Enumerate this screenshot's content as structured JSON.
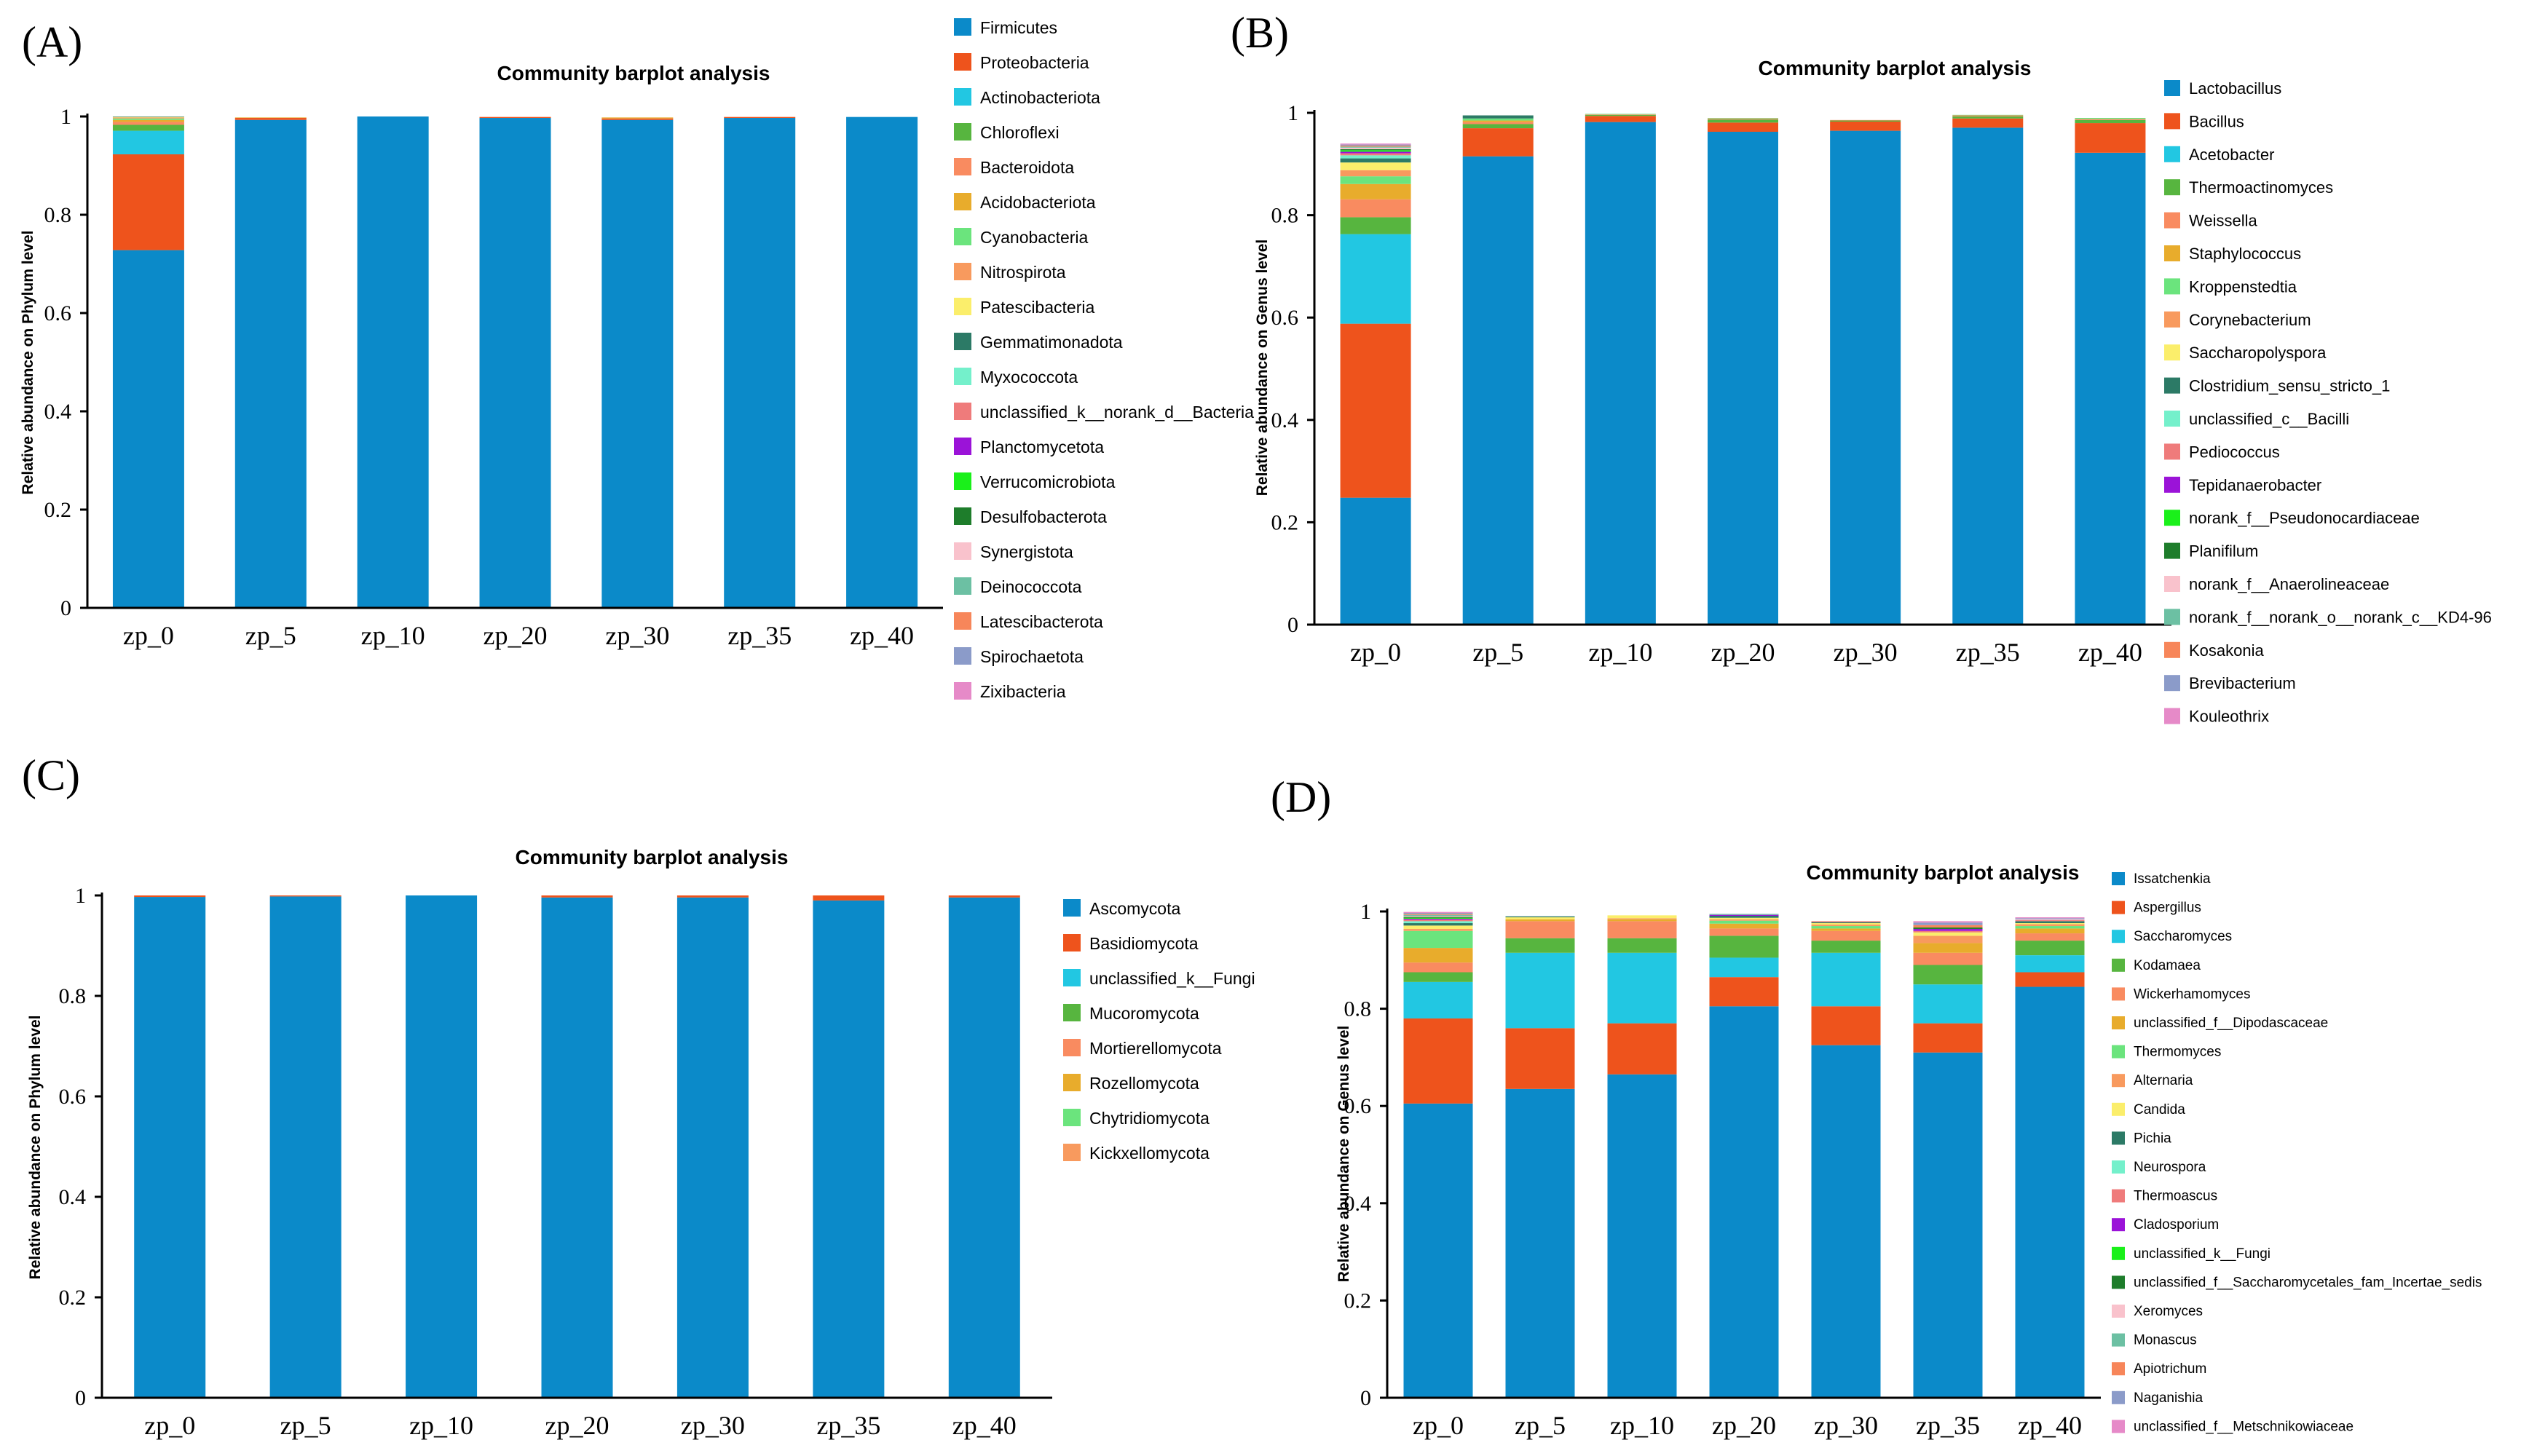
{
  "chart_data": [
    {
      "panel": "(A)",
      "type": "bar",
      "stacked": true,
      "title": "Community barplot analysis",
      "ylabel": "Relative abundance on Phylum level",
      "xlabel": "",
      "ylim": [
        0,
        1
      ],
      "yticks": [
        "0",
        "0.2",
        "0.4",
        "0.6",
        "0.8",
        "1"
      ],
      "categories": [
        "zp_0",
        "zp_5",
        "zp_10",
        "zp_20",
        "zp_30",
        "zp_35",
        "zp_40"
      ],
      "legend_position": "right",
      "series": [
        {
          "name": "Firmicutes",
          "color": "#0b8ac9",
          "values": [
            0.728,
            0.993,
            1.0,
            0.997,
            0.993,
            0.997,
            0.999
          ]
        },
        {
          "name": "Proteobacteria",
          "color": "#ee531c",
          "values": [
            0.195,
            0.004,
            0.0,
            0.002,
            0.003,
            0.002,
            0.0
          ]
        },
        {
          "name": "Actinobacteriota",
          "color": "#22c7e2",
          "values": [
            0.048,
            0.0,
            0.0,
            0.0,
            0.0,
            0.0,
            0.0
          ]
        },
        {
          "name": "Chloroflexi",
          "color": "#57b53f",
          "values": [
            0.012,
            0.0,
            0.0,
            0.0,
            0.0,
            0.0,
            0.0
          ]
        },
        {
          "name": "Bacteroidota",
          "color": "#f98b60",
          "values": [
            0.006,
            0.0,
            0.0,
            0.0,
            0.0,
            0.0,
            0.0
          ]
        },
        {
          "name": "Acidobacteriota",
          "color": "#e8ac2c",
          "values": [
            0.004,
            0.001,
            0.0,
            0.0,
            0.002,
            0.0,
            0.0
          ]
        },
        {
          "name": "Cyanobacteria",
          "color": "#6be47d",
          "values": [
            0.003,
            0.0,
            0.0,
            0.0,
            0.0,
            0.0,
            0.0
          ]
        },
        {
          "name": "Nitrospirota",
          "color": "#f89a5e",
          "values": [
            0.002,
            0.0,
            0.0,
            0.0,
            0.0,
            0.0,
            0.0
          ]
        },
        {
          "name": "Patescibacteria",
          "color": "#fbee6b",
          "values": [
            0.001,
            0.0,
            0.0,
            0.0,
            0.0,
            0.0,
            0.0
          ]
        },
        {
          "name": "Gemmatimonadota",
          "color": "#2c7a66",
          "values": [
            0.001,
            0.0,
            0.0,
            0.0,
            0.0,
            0.0,
            0.0
          ]
        },
        {
          "name": "Myxococcota",
          "color": "#74f0cb",
          "values": [
            0.0,
            0.0,
            0.0,
            0.0,
            0.0,
            0.0,
            0.0
          ]
        },
        {
          "name": "unclassified_k__norank_d__Bacteria",
          "color": "#ef7b7b",
          "values": [
            0.0,
            0.0,
            0.0,
            0.0,
            0.0,
            0.0,
            0.0
          ]
        },
        {
          "name": "Planctomycetota",
          "color": "#9b13d8",
          "values": [
            0.0,
            0.0,
            0.0,
            0.0,
            0.0,
            0.0,
            0.0
          ]
        },
        {
          "name": "Verrucomicrobiota",
          "color": "#1af01a",
          "values": [
            0.0,
            0.0,
            0.0,
            0.0,
            0.0,
            0.0,
            0.0
          ]
        },
        {
          "name": "Desulfobacterota",
          "color": "#1e7d2b",
          "values": [
            0.0,
            0.0,
            0.0,
            0.0,
            0.0,
            0.0,
            0.0
          ]
        },
        {
          "name": "Synergistota",
          "color": "#f9c2cc",
          "values": [
            0.0,
            0.0,
            0.0,
            0.0,
            0.0,
            0.0,
            0.0
          ]
        },
        {
          "name": "Deinococcota",
          "color": "#6cc0a3",
          "values": [
            0.0,
            0.0,
            0.0,
            0.0,
            0.0,
            0.0,
            0.0
          ]
        },
        {
          "name": "Latescibacterota",
          "color": "#f7865a",
          "values": [
            0.0,
            0.0,
            0.0,
            0.0,
            0.0,
            0.0,
            0.0
          ]
        },
        {
          "name": "Spirochaetota",
          "color": "#8b9bc9",
          "values": [
            0.0,
            0.0,
            0.0,
            0.0,
            0.0,
            0.0,
            0.0
          ]
        },
        {
          "name": "Zixibacteria",
          "color": "#e68ac8",
          "values": [
            0.0,
            0.0,
            0.0,
            0.0,
            0.0,
            0.0,
            0.0
          ]
        }
      ]
    },
    {
      "panel": "(B)",
      "type": "bar",
      "stacked": true,
      "title": "Community barplot analysis",
      "ylabel": "Relative abundance on Genus level",
      "xlabel": "",
      "ylim": [
        0,
        1
      ],
      "yticks": [
        "0",
        "0.2",
        "0.4",
        "0.6",
        "0.8",
        "1"
      ],
      "categories": [
        "zp_0",
        "zp_5",
        "zp_10",
        "zp_20",
        "zp_30",
        "zp_35",
        "zp_40"
      ],
      "legend_position": "right",
      "series": [
        {
          "name": "Lactobacillus",
          "color": "#0b8ac9",
          "values": [
            0.248,
            0.915,
            0.982,
            0.963,
            0.965,
            0.971,
            0.922
          ]
        },
        {
          "name": "Bacillus",
          "color": "#ee531c",
          "values": [
            0.34,
            0.055,
            0.012,
            0.018,
            0.018,
            0.018,
            0.058
          ]
        },
        {
          "name": "Acetobacter",
          "color": "#22c7e2",
          "values": [
            0.175,
            0.0,
            0.0,
            0.0,
            0.0,
            0.0,
            0.0
          ]
        },
        {
          "name": "Thermoactinomyces",
          "color": "#57b53f",
          "values": [
            0.033,
            0.008,
            0.002,
            0.006,
            0.002,
            0.004,
            0.006
          ]
        },
        {
          "name": "Weissella",
          "color": "#f98b60",
          "values": [
            0.035,
            0.004,
            0.001,
            0.002,
            0.001,
            0.002,
            0.002
          ]
        },
        {
          "name": "Staphylococcus",
          "color": "#e8ac2c",
          "values": [
            0.03,
            0.003,
            0.0,
            0.0,
            0.0,
            0.0,
            0.0
          ]
        },
        {
          "name": "Kroppenstedtia",
          "color": "#6be47d",
          "values": [
            0.015,
            0.004,
            0.001,
            0.001,
            0.0,
            0.001,
            0.002
          ]
        },
        {
          "name": "Corynebacterium",
          "color": "#f89a5e",
          "values": [
            0.012,
            0.0,
            0.0,
            0.0,
            0.0,
            0.0,
            0.0
          ]
        },
        {
          "name": "Saccharopolyspora",
          "color": "#fbee6b",
          "values": [
            0.015,
            0.0,
            0.0,
            0.0,
            0.0,
            0.0,
            0.0
          ]
        },
        {
          "name": "Clostridium_sensu_stricto_1",
          "color": "#2c7a66",
          "values": [
            0.008,
            0.006,
            0.0,
            0.0,
            0.0,
            0.0,
            0.0
          ]
        },
        {
          "name": "unclassified_c__Bacilli",
          "color": "#74f0cb",
          "values": [
            0.006,
            0.0,
            0.0,
            0.0,
            0.0,
            0.0,
            0.0
          ]
        },
        {
          "name": "Pediococcus",
          "color": "#ef7b7b",
          "values": [
            0.004,
            0.0,
            0.0,
            0.0,
            0.0,
            0.0,
            0.0
          ]
        },
        {
          "name": "Tepidanaerobacter",
          "color": "#9b13d8",
          "values": [
            0.003,
            0.0,
            0.0,
            0.0,
            0.0,
            0.0,
            0.0
          ]
        },
        {
          "name": "norank_f__Pseudonocardiaceae",
          "color": "#1af01a",
          "values": [
            0.003,
            0.0,
            0.0,
            0.0,
            0.0,
            0.0,
            0.0
          ]
        },
        {
          "name": "Planifilum",
          "color": "#1e7d2b",
          "values": [
            0.002,
            0.0,
            0.0,
            0.0,
            0.0,
            0.0,
            0.0
          ]
        },
        {
          "name": "norank_f__Anaerolineaceae",
          "color": "#f9c2cc",
          "values": [
            0.003,
            0.0,
            0.0,
            0.0,
            0.0,
            0.0,
            0.0
          ]
        },
        {
          "name": "norank_f__norank_o__norank_c__KD4-96",
          "color": "#6cc0a3",
          "values": [
            0.002,
            0.0,
            0.0,
            0.0,
            0.0,
            0.0,
            0.0
          ]
        },
        {
          "name": "Kosakonia",
          "color": "#f7865a",
          "values": [
            0.002,
            0.0,
            0.0,
            0.0,
            0.0,
            0.0,
            0.0
          ]
        },
        {
          "name": "Brevibacterium",
          "color": "#8b9bc9",
          "values": [
            0.002,
            0.0,
            0.0,
            0.0,
            0.0,
            0.0,
            0.0
          ]
        },
        {
          "name": "Kouleothrix",
          "color": "#e68ac8",
          "values": [
            0.002,
            0.0,
            0.0,
            0.0,
            0.0,
            0.0,
            0.0
          ]
        }
      ]
    },
    {
      "panel": "(C)",
      "type": "bar",
      "stacked": true,
      "title": "Community barplot analysis",
      "ylabel": "Relative abundance on Phylum level",
      "xlabel": "",
      "ylim": [
        0,
        1
      ],
      "yticks": [
        "0",
        "0.2",
        "0.4",
        "0.6",
        "0.8",
        "1"
      ],
      "categories": [
        "zp_0",
        "zp_5",
        "zp_10",
        "zp_20",
        "zp_30",
        "zp_35",
        "zp_40"
      ],
      "legend_position": "right",
      "series": [
        {
          "name": "Ascomycota",
          "color": "#0b8ac9",
          "values": [
            0.997,
            0.998,
            1.0,
            0.996,
            0.996,
            0.99,
            0.996
          ]
        },
        {
          "name": "Basidiomycota",
          "color": "#ee531c",
          "values": [
            0.003,
            0.002,
            0.0,
            0.004,
            0.004,
            0.01,
            0.004
          ]
        },
        {
          "name": "unclassified_k__Fungi",
          "color": "#22c7e2",
          "values": [
            0.0,
            0.0,
            0.0,
            0.0,
            0.0,
            0.0,
            0.0
          ]
        },
        {
          "name": "Mucoromycota",
          "color": "#57b53f",
          "values": [
            0.0,
            0.0,
            0.0,
            0.0,
            0.0,
            0.0,
            0.0
          ]
        },
        {
          "name": "Mortierellomycota",
          "color": "#f98b60",
          "values": [
            0.0,
            0.0,
            0.0,
            0.0,
            0.0,
            0.0,
            0.0
          ]
        },
        {
          "name": "Rozellomycota",
          "color": "#e8ac2c",
          "values": [
            0.0,
            0.0,
            0.0,
            0.0,
            0.0,
            0.0,
            0.0
          ]
        },
        {
          "name": "Chytridiomycota",
          "color": "#6be47d",
          "values": [
            0.0,
            0.0,
            0.0,
            0.0,
            0.0,
            0.0,
            0.0
          ]
        },
        {
          "name": "Kickxellomycota",
          "color": "#f89a5e",
          "values": [
            0.0,
            0.0,
            0.0,
            0.0,
            0.0,
            0.0,
            0.0
          ]
        }
      ]
    },
    {
      "panel": "(D)",
      "type": "bar",
      "stacked": true,
      "title": "Community barplot analysis",
      "ylabel": "Relative abundance on Genus level",
      "xlabel": "",
      "ylim": [
        0,
        1
      ],
      "yticks": [
        "0",
        "0.2",
        "0.4",
        "0.6",
        "0.8",
        "1"
      ],
      "categories": [
        "zp_0",
        "zp_5",
        "zp_10",
        "zp_20",
        "zp_30",
        "zp_35",
        "zp_40"
      ],
      "legend_position": "right",
      "series": [
        {
          "name": "Issatchenkia",
          "color": "#0b8ac9",
          "values": [
            0.605,
            0.635,
            0.665,
            0.805,
            0.725,
            0.71,
            0.845
          ]
        },
        {
          "name": "Aspergillus",
          "color": "#ee531c",
          "values": [
            0.175,
            0.125,
            0.105,
            0.06,
            0.08,
            0.06,
            0.03
          ]
        },
        {
          "name": "Saccharomyces",
          "color": "#22c7e2",
          "values": [
            0.075,
            0.155,
            0.145,
            0.04,
            0.11,
            0.08,
            0.035
          ]
        },
        {
          "name": "Kodamaea",
          "color": "#57b53f",
          "values": [
            0.02,
            0.03,
            0.03,
            0.045,
            0.025,
            0.04,
            0.03
          ]
        },
        {
          "name": "Wickerhamomyces",
          "color": "#f98b60",
          "values": [
            0.02,
            0.035,
            0.035,
            0.015,
            0.02,
            0.025,
            0.015
          ]
        },
        {
          "name": "unclassified_f__Dipodascaceae",
          "color": "#e8ac2c",
          "values": [
            0.03,
            0.004,
            0.004,
            0.01,
            0.005,
            0.02,
            0.01
          ]
        },
        {
          "name": "Thermomyces",
          "color": "#6be47d",
          "values": [
            0.035,
            0.0,
            0.0,
            0.006,
            0.005,
            0.0,
            0.005
          ]
        },
        {
          "name": "Alternaria",
          "color": "#f89a5e",
          "values": [
            0.004,
            0.0,
            0.002,
            0.003,
            0.003,
            0.015,
            0.004
          ]
        },
        {
          "name": "Candida",
          "color": "#fbee6b",
          "values": [
            0.007,
            0.004,
            0.006,
            0.003,
            0.003,
            0.007,
            0.002
          ]
        },
        {
          "name": "Pichia",
          "color": "#2c7a66",
          "values": [
            0.005,
            0.002,
            0.0,
            0.004,
            0.002,
            0.0,
            0.004
          ]
        },
        {
          "name": "Neurospora",
          "color": "#74f0cb",
          "values": [
            0.004,
            0.0,
            0.0,
            0.0,
            0.0,
            0.0,
            0.0
          ]
        },
        {
          "name": "Thermoascus",
          "color": "#ef7b7b",
          "values": [
            0.003,
            0.0,
            0.0,
            0.0,
            0.002,
            0.003,
            0.002
          ]
        },
        {
          "name": "Cladosporium",
          "color": "#9b13d8",
          "values": [
            0.002,
            0.0,
            0.0,
            0.002,
            0.0,
            0.004,
            0.0
          ]
        },
        {
          "name": "unclassified_k__Fungi",
          "color": "#1af01a",
          "values": [
            0.002,
            0.0,
            0.0,
            0.0,
            0.0,
            0.0,
            0.0
          ]
        },
        {
          "name": "unclassified_f__Saccharomycetales_fam_Incertae_sedis",
          "color": "#1e7d2b",
          "values": [
            0.002,
            0.0,
            0.0,
            0.0,
            0.0,
            0.003,
            0.0
          ]
        },
        {
          "name": "Xeromyces",
          "color": "#f9c2cc",
          "values": [
            0.002,
            0.0,
            0.0,
            0.0,
            0.0,
            0.0,
            0.002
          ]
        },
        {
          "name": "Monascus",
          "color": "#6cc0a3",
          "values": [
            0.002,
            0.0,
            0.0,
            0.002,
            0.0,
            0.0,
            0.0
          ]
        },
        {
          "name": "Apiotrichum",
          "color": "#f7865a",
          "values": [
            0.002,
            0.0,
            0.0,
            0.0,
            0.0,
            0.005,
            0.0
          ]
        },
        {
          "name": "Naganishia",
          "color": "#8b9bc9",
          "values": [
            0.002,
            0.0,
            0.0,
            0.0,
            0.0,
            0.005,
            0.002
          ]
        },
        {
          "name": "unclassified_f__Metschnikowiaceae",
          "color": "#e68ac8",
          "values": [
            0.002,
            0.0,
            0.0,
            0.0,
            0.0,
            0.003,
            0.002
          ]
        }
      ]
    }
  ]
}
